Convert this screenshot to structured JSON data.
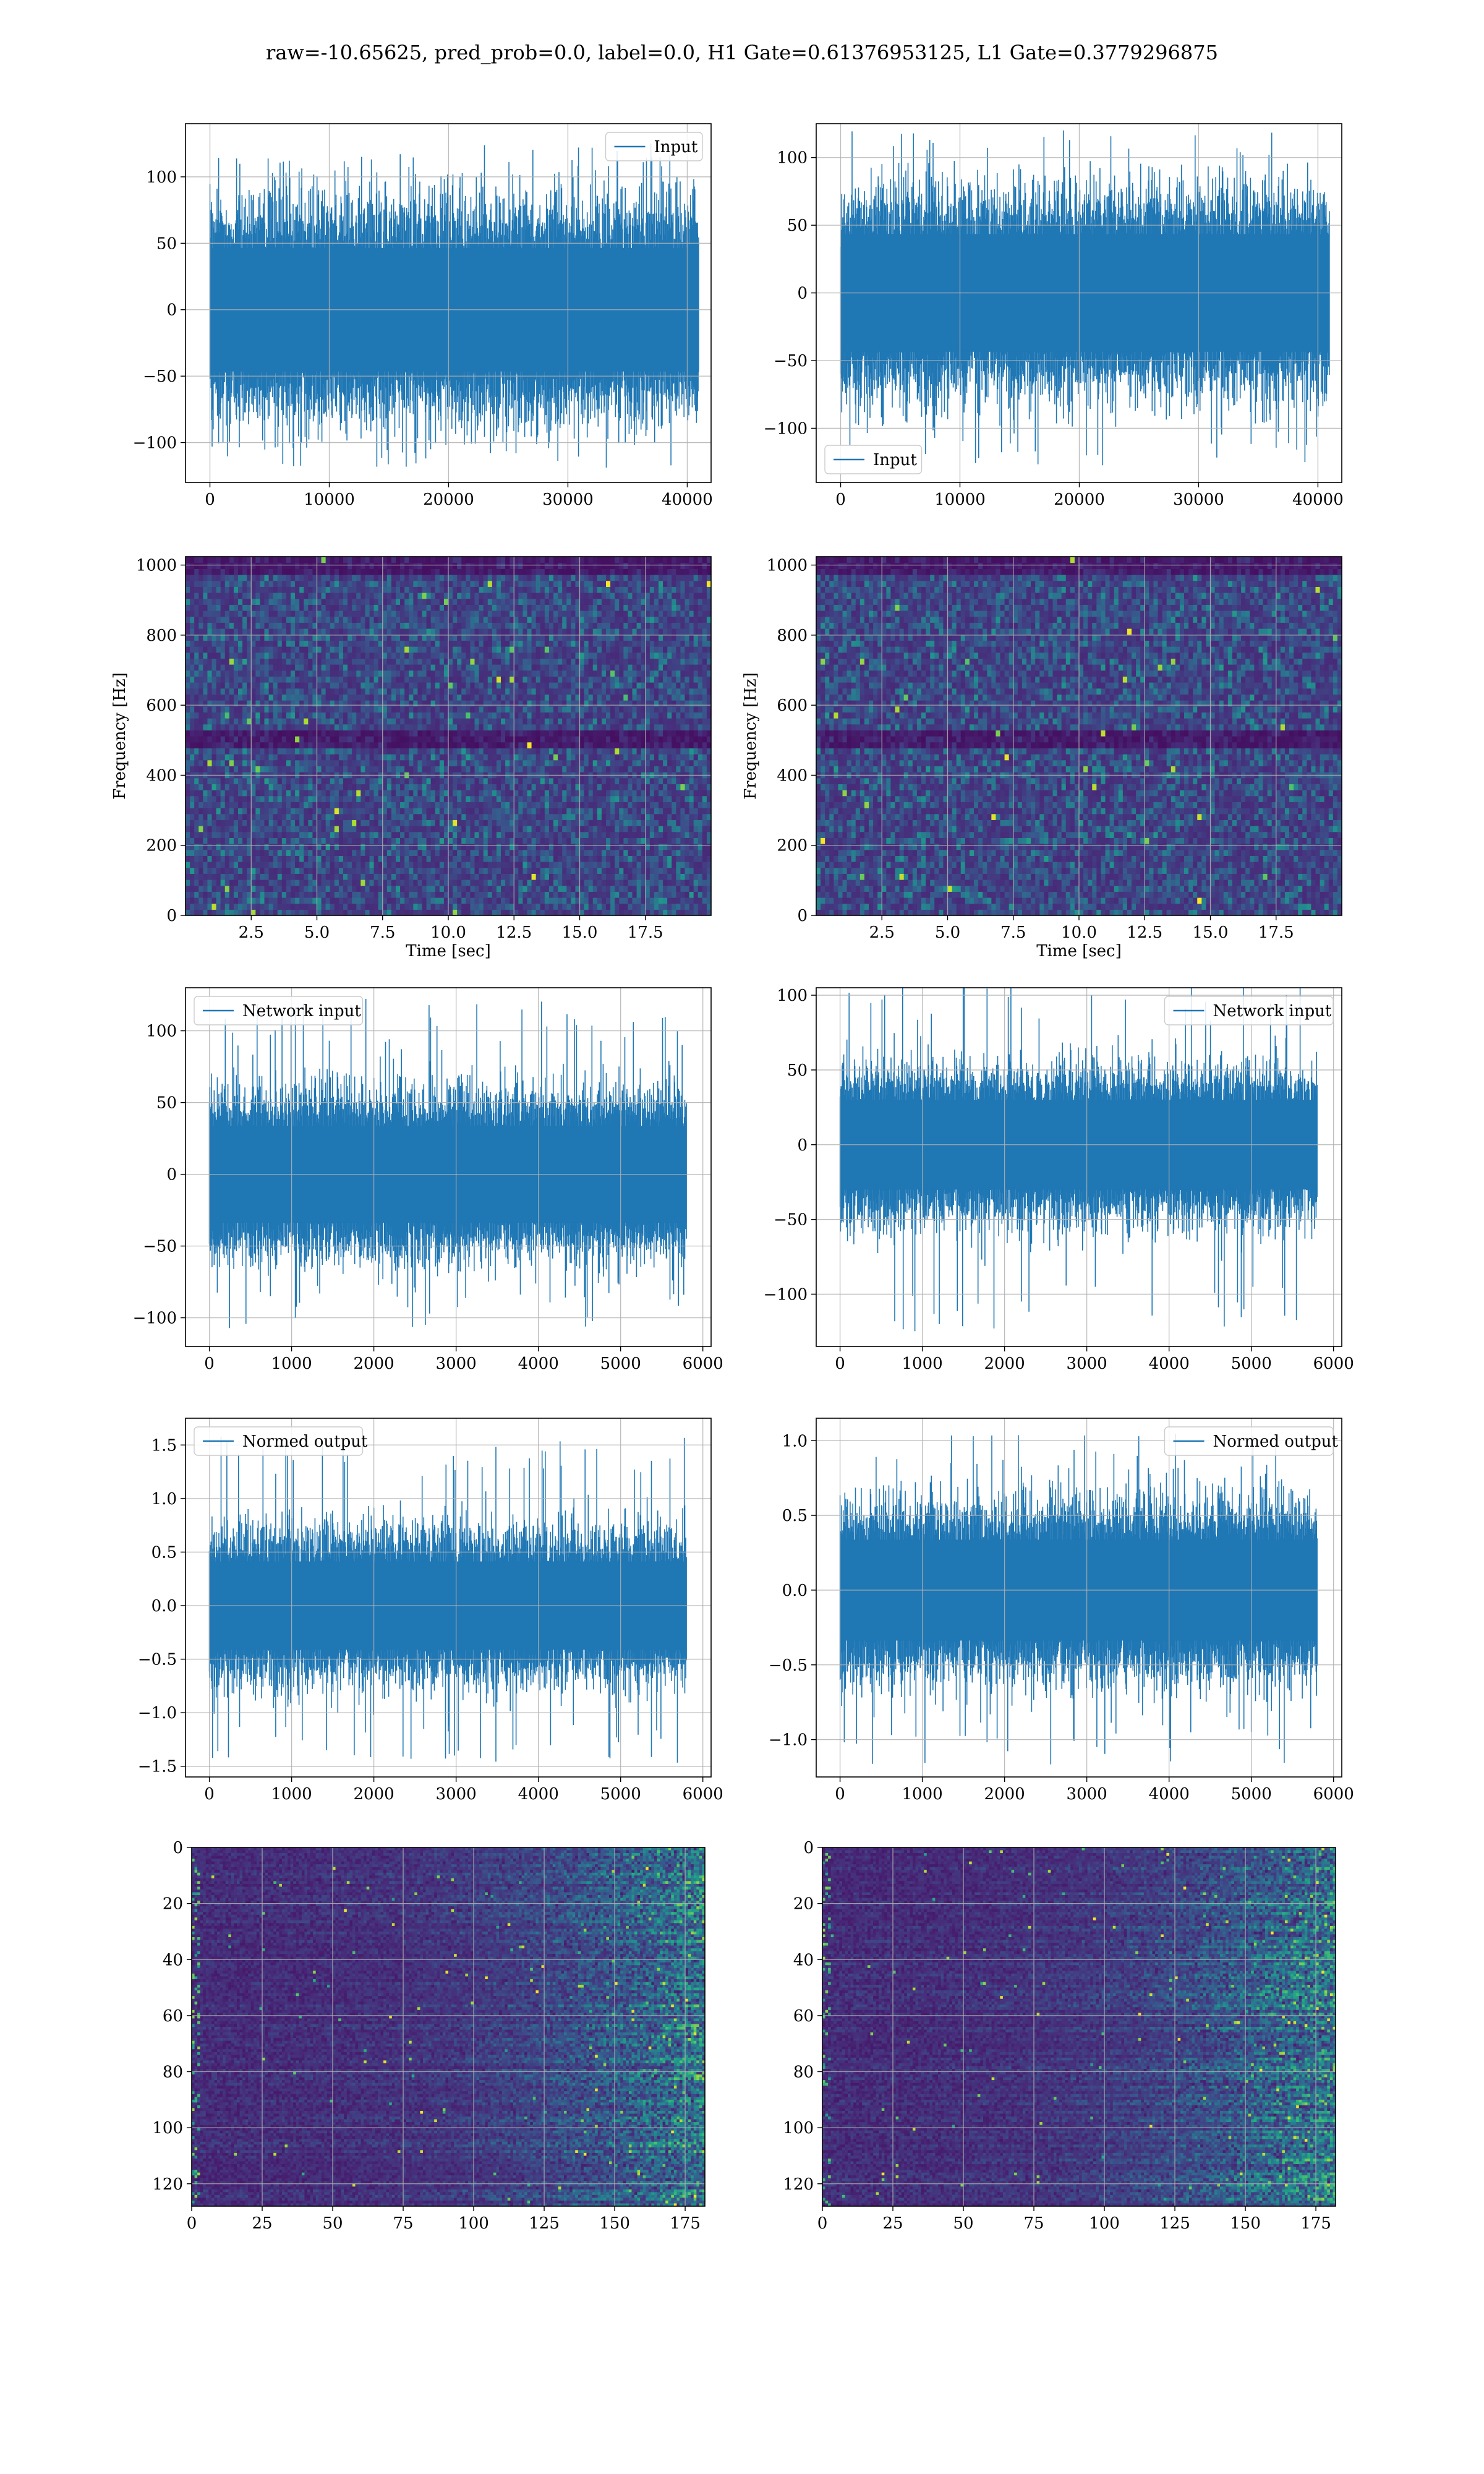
{
  "figure": {
    "title": "raw=-10.65625, pred_prob=0.0, label=0.0, H1 Gate=0.61376953125, L1 Gate=0.3779296875"
  },
  "colors": {
    "line": "#1f77b4",
    "grid": "#b0b0b0",
    "viridis": [
      "#440154",
      "#472c7a",
      "#3b518b",
      "#2c718e",
      "#21908d",
      "#27ad81",
      "#5cc863",
      "#aadc32",
      "#fde725"
    ]
  },
  "chart_data": [
    {
      "id": "input-h1",
      "type": "line",
      "xlabel": "",
      "ylabel": "",
      "xlim": [
        -2048,
        42000
      ],
      "ylim": [
        -130,
        140
      ],
      "xticks": [
        0,
        10000,
        20000,
        30000,
        40000
      ],
      "yticks": [
        -100,
        -50,
        0,
        50,
        100
      ],
      "legend": {
        "position": "top-right"
      },
      "series": [
        {
          "name": "Input",
          "x_range": [
            0,
            40960
          ],
          "envelope": [
            -62,
            62
          ],
          "peaks": [
            -120,
            125
          ],
          "points": 40960
        }
      ]
    },
    {
      "id": "input-l1",
      "type": "line",
      "xlabel": "",
      "ylabel": "",
      "xlim": [
        -2048,
        42000
      ],
      "ylim": [
        -140,
        125
      ],
      "xticks": [
        0,
        10000,
        20000,
        30000,
        40000
      ],
      "yticks": [
        -100,
        -50,
        0,
        50,
        100
      ],
      "legend": {
        "position": "bottom-left"
      },
      "series": [
        {
          "name": "Input",
          "x_range": [
            0,
            40960
          ],
          "envelope": [
            -58,
            58
          ],
          "peaks": [
            -128,
            120
          ],
          "points": 40960
        }
      ]
    },
    {
      "id": "spectrogram-h1",
      "type": "heatmap",
      "xlabel": "Time [sec]",
      "ylabel": "Frequency [Hz]",
      "xlim": [
        0,
        20
      ],
      "ylim": [
        0,
        1024
      ],
      "xticks": [
        2.5,
        5.0,
        7.5,
        10.0,
        12.5,
        15.0,
        17.5
      ],
      "yticks": [
        0,
        200,
        400,
        600,
        800,
        1000
      ],
      "grid_cells": [
        120,
        60
      ],
      "dark_bands_hz": [
        500,
        1000
      ]
    },
    {
      "id": "spectrogram-l1",
      "type": "heatmap",
      "xlabel": "Time [sec]",
      "ylabel": "Frequency [Hz]",
      "xlim": [
        0,
        20
      ],
      "ylim": [
        0,
        1024
      ],
      "xticks": [
        2.5,
        5.0,
        7.5,
        10.0,
        12.5,
        15.0,
        17.5
      ],
      "yticks": [
        0,
        200,
        400,
        600,
        800,
        1000
      ],
      "grid_cells": [
        120,
        60
      ],
      "dark_bands_hz": [
        500,
        1000
      ]
    },
    {
      "id": "network-input-h1",
      "type": "line",
      "xlabel": "",
      "ylabel": "",
      "xlim": [
        -290,
        6100
      ],
      "ylim": [
        -120,
        130
      ],
      "xticks": [
        0,
        1000,
        2000,
        3000,
        4000,
        5000,
        6000
      ],
      "yticks": [
        -100,
        -50,
        0,
        50,
        100
      ],
      "legend": {
        "position": "top-left"
      },
      "series": [
        {
          "name": "Network input",
          "x_range": [
            0,
            5800
          ],
          "envelope": [
            -45,
            45
          ],
          "peaks": [
            -108,
            123
          ],
          "points": 5800
        }
      ]
    },
    {
      "id": "network-input-l1",
      "type": "line",
      "xlabel": "",
      "ylabel": "",
      "xlim": [
        -290,
        6100
      ],
      "ylim": [
        -135,
        105
      ],
      "xticks": [
        0,
        1000,
        2000,
        3000,
        4000,
        5000,
        6000
      ],
      "yticks": [
        -100,
        -50,
        0,
        50,
        100
      ],
      "legend": {
        "position": "top-right"
      },
      "series": [
        {
          "name": "Network input",
          "x_range": [
            0,
            5800
          ],
          "envelope": [
            -40,
            40
          ],
          "peaks": [
            -125,
            110
          ],
          "points": 5800
        }
      ]
    },
    {
      "id": "normed-output-h1",
      "type": "line",
      "xlabel": "",
      "ylabel": "",
      "xlim": [
        -290,
        6100
      ],
      "ylim": [
        -1.6,
        1.75
      ],
      "xticks": [
        0,
        1000,
        2000,
        3000,
        4000,
        5000,
        6000
      ],
      "yticks": [
        -1.5,
        -1.0,
        -0.5,
        0.0,
        0.5,
        1.0,
        1.5
      ],
      "legend": {
        "position": "top-left"
      },
      "series": [
        {
          "name": "Normed output",
          "x_range": [
            0,
            5800
          ],
          "envelope": [
            -0.55,
            0.55
          ],
          "peaks": [
            -1.48,
            1.62
          ],
          "points": 5800
        }
      ]
    },
    {
      "id": "normed-output-l1",
      "type": "line",
      "xlabel": "",
      "ylabel": "",
      "xlim": [
        -290,
        6100
      ],
      "ylim": [
        -1.25,
        1.15
      ],
      "xticks": [
        0,
        1000,
        2000,
        3000,
        4000,
        5000,
        6000
      ],
      "yticks": [
        -1.0,
        -0.5,
        0.0,
        0.5,
        1.0
      ],
      "legend": {
        "position": "top-right"
      },
      "series": [
        {
          "name": "Normed output",
          "x_range": [
            0,
            5800
          ],
          "envelope": [
            -0.45,
            0.45
          ],
          "peaks": [
            -1.18,
            1.08
          ],
          "points": 5800
        }
      ]
    },
    {
      "id": "feature-map-h1",
      "type": "heatmap",
      "xlabel": "",
      "ylabel": "",
      "xlim": [
        0,
        182
      ],
      "ylim": [
        128,
        0
      ],
      "xticks": [
        0,
        25,
        50,
        75,
        100,
        125,
        150,
        175
      ],
      "yticks": [
        0,
        20,
        40,
        60,
        80,
        100,
        120
      ],
      "grid_cells": [
        182,
        128
      ],
      "bright_side": "right"
    },
    {
      "id": "feature-map-l1",
      "type": "heatmap",
      "xlabel": "",
      "ylabel": "",
      "xlim": [
        0,
        182
      ],
      "ylim": [
        128,
        0
      ],
      "xticks": [
        0,
        25,
        50,
        75,
        100,
        125,
        150,
        175
      ],
      "yticks": [
        0,
        20,
        40,
        60,
        80,
        100,
        120
      ],
      "grid_cells": [
        182,
        128
      ],
      "bright_side": "right"
    }
  ]
}
